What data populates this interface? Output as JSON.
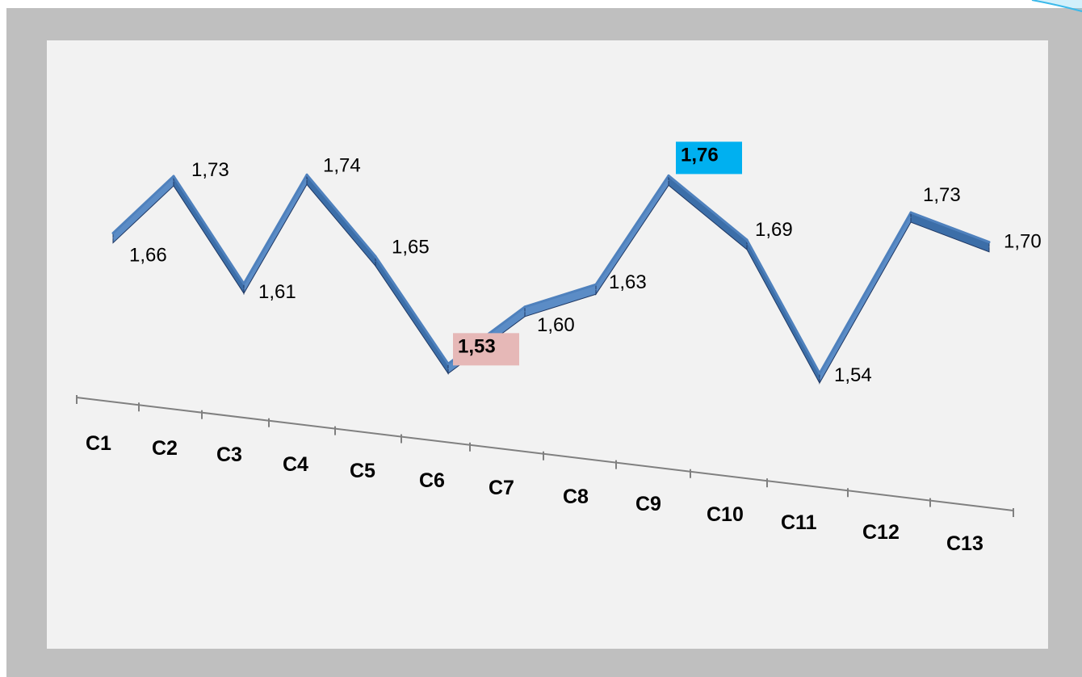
{
  "chart_data": {
    "type": "line",
    "categories": [
      "C1",
      "C2",
      "C3",
      "C4",
      "C5",
      "C6",
      "C7",
      "C8",
      "C9",
      "C10",
      "C11",
      "C12",
      "C13"
    ],
    "series": [
      {
        "values": [
          1.66,
          1.73,
          1.61,
          1.74,
          1.65,
          1.53,
          1.6,
          1.63,
          1.76,
          1.69,
          1.54,
          1.73,
          1.7
        ]
      }
    ],
    "data_labels": [
      "1,66",
      "1,73",
      "1,61",
      "1,74",
      "1,65",
      "1,53",
      "1,60",
      "1,63",
      "1,76",
      "1,69",
      "1,54",
      "1,73",
      "1,70"
    ],
    "highlights": {
      "min": {
        "index": 5,
        "color": "#e6b8b7"
      },
      "max": {
        "index": 8,
        "color": "#00b0f0"
      }
    },
    "line_color": "#4f81bd",
    "line_shadow_color": "#1f3864",
    "axis_color": "#808080",
    "title": "",
    "xlabel": "",
    "ylabel": "",
    "ylim": [
      1.5,
      1.78
    ],
    "grid": false,
    "legend": "none",
    "perspective": "3d-tilted"
  }
}
